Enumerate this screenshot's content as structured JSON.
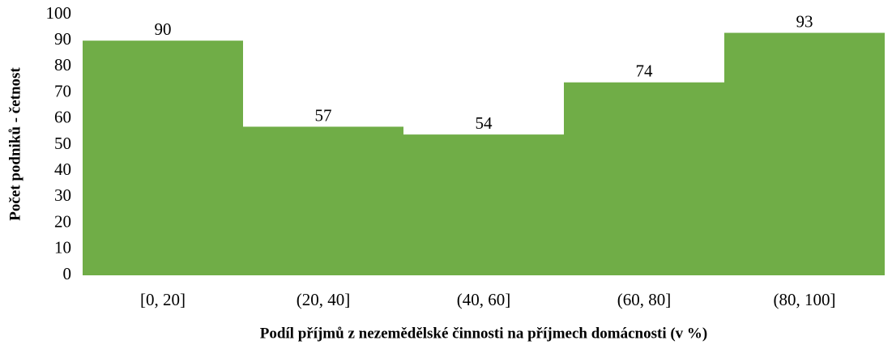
{
  "chart_data": {
    "type": "bar",
    "x_label": "Podíl příjmů z nezemědělské činnosti na příjmech domácnosti (v %)",
    "y_label": "Počet podniků - četnost",
    "categories": [
      "[0, 20]",
      "(20, 40]",
      "(40, 60]",
      "(60, 80]",
      "(80, 100]"
    ],
    "values": [
      90,
      57,
      54,
      74,
      93
    ],
    "color": "#70ad47",
    "ylim": [
      0,
      100
    ],
    "yticks": [
      0,
      10,
      20,
      30,
      40,
      50,
      60,
      70,
      80,
      90,
      100
    ],
    "grid": false
  }
}
